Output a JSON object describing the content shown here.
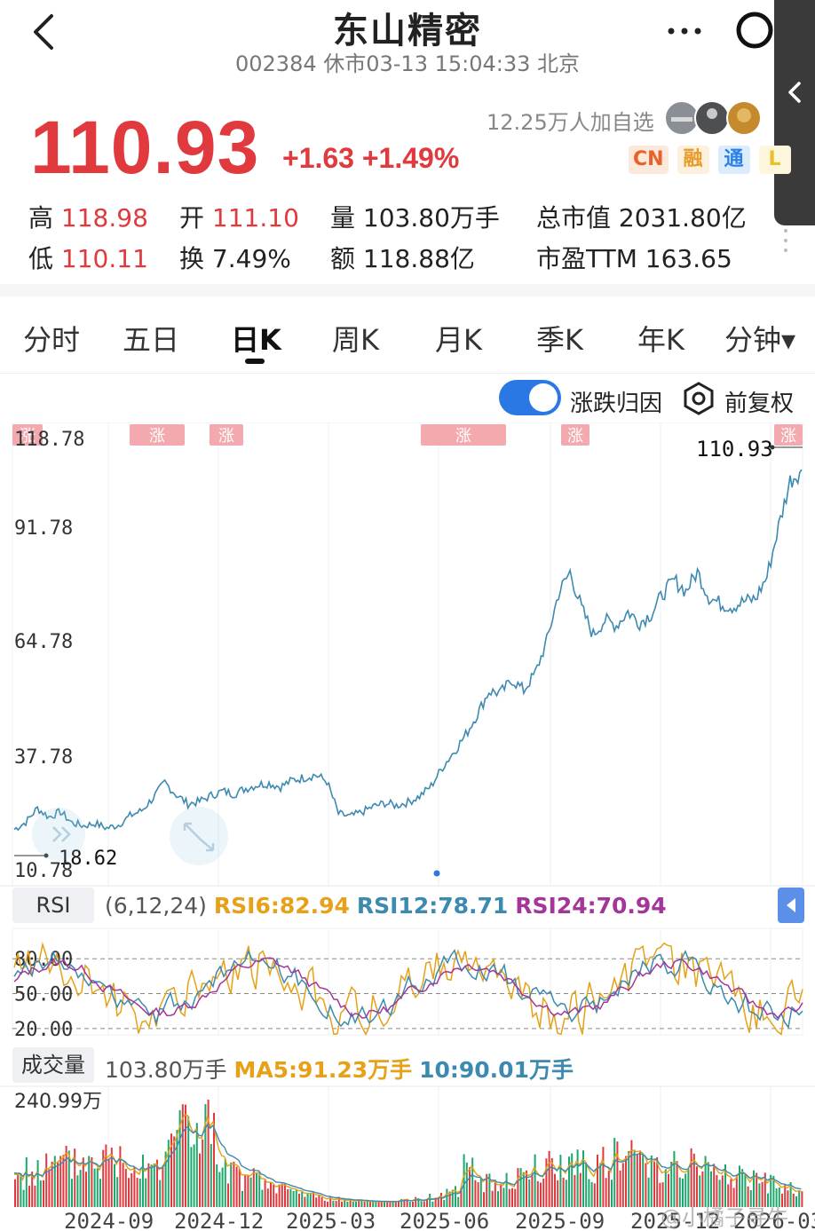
{
  "header": {
    "title": "东山精密",
    "subtitle": "002384 休市03-13 15:04:33 北京"
  },
  "quote": {
    "price": "110.93",
    "change": "+1.63 +1.49%",
    "watchers": "12.25万人加自选",
    "tags": [
      "CN",
      "融",
      "通",
      "L"
    ]
  },
  "stats": {
    "high_label": "高",
    "high_value": "118.98",
    "open_label": "开",
    "open_value": "111.10",
    "volume_label": "量",
    "volume_value": "103.80万手",
    "mcap_label": "总市值",
    "mcap_value": "2031.80亿",
    "low_label": "低",
    "low_value": "110.11",
    "turnover_label": "换",
    "turnover_value": "7.49%",
    "amount_label": "额",
    "amount_value": "118.88亿",
    "pe_label": "市盈TTM",
    "pe_value": "163.65"
  },
  "tabs": [
    "分时",
    "五日",
    "日K",
    "周K",
    "月K",
    "季K",
    "年K",
    "分钟▾"
  ],
  "active_tab": "日K",
  "controls": {
    "toggle_label": "涨跌归因",
    "toggle_on": true,
    "adjust_label": "前复权"
  },
  "colors": {
    "up": "#e03a3e",
    "down": "#1aa86b",
    "line": "#3c8ab0",
    "accent": "#2a78e4",
    "ma5": "#e6a118",
    "ma10": "#3c8ab0",
    "rsi24": "#a4359a"
  },
  "rsi": {
    "badge": "RSI",
    "params": "(6,12,24)",
    "rsi6": "RSI6:82.94",
    "rsi12": "RSI12:78.71",
    "rsi24": "RSI24:70.94",
    "levels": [
      "80.00",
      "50.00",
      "20.00"
    ]
  },
  "volume": {
    "badge": "成交量",
    "current": "103.80万手",
    "ma5": "MA5:91.23万手",
    "ma10": "10:90.01万手",
    "max_label": "240.99万"
  },
  "dates": [
    "2024-09",
    "2024-12",
    "2025-03",
    "2025-06",
    "2025-09",
    "2025-12",
    "2026-03"
  ],
  "watermark": "@小橘子寻牛",
  "chart_data": {
    "type": "line",
    "series": [
      {
        "values": [
          20.5,
          22.3,
          25.8,
          23.6,
          24.9,
          22.1,
          21.4,
          22.0,
          20.8,
          21.6,
          23.9,
          25.2,
          28.4,
          32.3,
          29.2,
          26.9,
          27.5,
          29.0,
          30.1,
          29.4,
          30.8,
          31.7,
          32.1,
          31.2,
          32.8,
          33.5,
          34.2,
          32.6,
          24.4,
          23.7,
          24.8,
          26.2,
          27.1,
          26.5,
          27.3,
          28.8,
          31.4,
          36.2,
          40.1,
          44.3,
          49.5,
          55.2,
          54.8,
          58.1,
          55.4,
          59.8,
          67.9,
          79.8,
          85.2,
          76.0,
          69.4,
          73.1,
          71.8,
          75.2,
          72.5,
          74.6,
          79.7,
          83.1,
          80.4,
          85.2,
          78.9,
          77.2,
          76.5,
          77.8,
          78.4,
          84.0,
          96.5,
          108.2,
          110.93
        ]
      }
    ],
    "ylim": [
      10.78,
      118.78
    ],
    "yticks": [
      "118.78",
      "91.78",
      "64.78",
      "37.78",
      "10.78"
    ],
    "last_label": "110.93",
    "low_label": "18.62",
    "markers": [
      "涨",
      "涨",
      "涨",
      "涨",
      "涨",
      "涨"
    ]
  }
}
